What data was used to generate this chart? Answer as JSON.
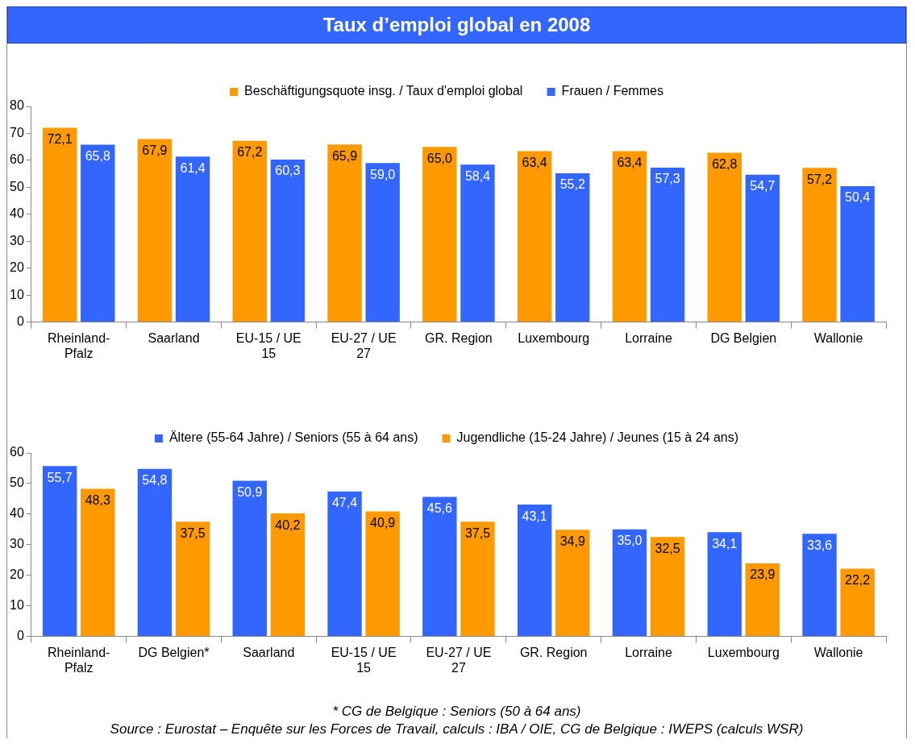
{
  "chart_data": [
    {
      "type": "bar",
      "title": "Taux d’emploi global en 2008",
      "categories": [
        "Rheinland-Pfalz",
        "Saarland",
        "EU-15 / UE 15",
        "EU-27 / UE 27",
        "GR. Region",
        "Luxembourg",
        "Lorraine",
        "DG Belgien",
        "Wallonie"
      ],
      "series": [
        {
          "name": "Beschäftigungsquote insg. / Taux d'emploi global",
          "color": "#ff9900",
          "values": [
            72.1,
            67.9,
            67.2,
            65.9,
            65.0,
            63.4,
            63.4,
            62.8,
            57.2
          ],
          "value_labels": [
            "72,1",
            "67,9",
            "67,2",
            "65,9",
            "65,0",
            "63,4",
            "63,4",
            "62,8",
            "57,2"
          ]
        },
        {
          "name": "Frauen / Femmes",
          "color": "#3366ff",
          "values": [
            65.8,
            61.4,
            60.3,
            59.0,
            58.4,
            55.2,
            57.3,
            54.7,
            50.4
          ],
          "value_labels": [
            "65,8",
            "61,4",
            "60,3",
            "59,0",
            "58,4",
            "55,2",
            "57,3",
            "54,7",
            "50,4"
          ]
        }
      ],
      "ylim": [
        0,
        80
      ],
      "yticks": [
        0,
        10,
        20,
        30,
        40,
        50,
        60,
        70,
        80
      ],
      "grid": false,
      "legend": "top"
    },
    {
      "type": "bar",
      "categories": [
        "Rheinland-Pfalz",
        "DG Belgien*",
        "Saarland",
        "EU-15 / UE 15",
        "EU-27 / UE 27",
        "GR. Region",
        "Lorraine",
        "Luxembourg",
        "Wallonie"
      ],
      "series": [
        {
          "name": "Ältere (55-64 Jahre) / Seniors (55 à 64 ans)",
          "color": "#3366ff",
          "values": [
            55.7,
            54.8,
            50.9,
            47.4,
            45.6,
            43.1,
            35.0,
            34.1,
            33.6
          ],
          "value_labels": [
            "55,7",
            "54,8",
            "50,9",
            "47,4",
            "45,6",
            "43,1",
            "35,0",
            "34,1",
            "33,6"
          ]
        },
        {
          "name": "Jugendliche (15-24 Jahre) / Jeunes (15 à 24 ans)",
          "color": "#ff9900",
          "values": [
            48.3,
            37.5,
            40.2,
            40.9,
            37.5,
            34.9,
            32.5,
            23.9,
            22.2
          ],
          "value_labels": [
            "48,3",
            "37,5",
            "40,2",
            "40,9",
            "37,5",
            "34,9",
            "32,5",
            "23,9",
            "22,2"
          ]
        }
      ],
      "ylim": [
        0,
        60
      ],
      "yticks": [
        0,
        10,
        20,
        30,
        40,
        50,
        60
      ],
      "grid": false,
      "legend": "top",
      "annotations": [
        "* CG de Belgique : Seniors (50 à 64 ans)",
        "Source : Eurostat – Enquête sur les Forces de Travail, calculs : IBA / OIE, CG de Belgique : IWEPS (calculs WSR)"
      ]
    }
  ]
}
